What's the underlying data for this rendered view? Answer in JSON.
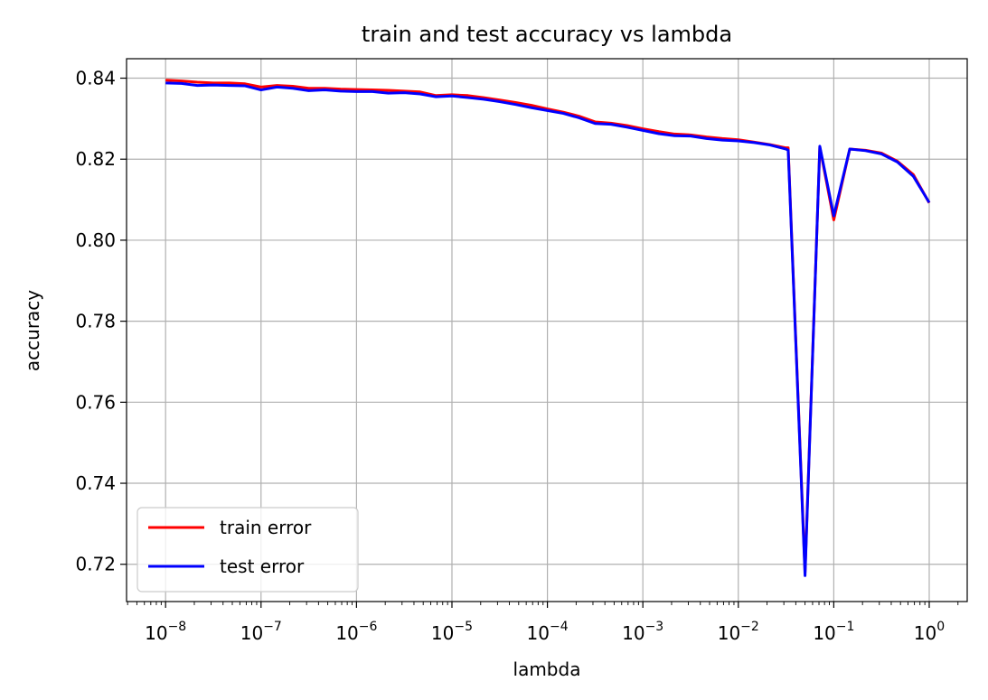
{
  "chart_data": {
    "type": "line",
    "title": "train and test accuracy vs lambda",
    "xlabel": "lambda",
    "ylabel": "accuracy",
    "xscale": "log",
    "xlim": [
      3.9e-09,
      2.5
    ],
    "ylim": [
      0.7108,
      0.8448
    ],
    "xticks": [
      {
        "value": 1e-08,
        "base": "10",
        "exp": "−8"
      },
      {
        "value": 1e-07,
        "base": "10",
        "exp": "−7"
      },
      {
        "value": 1e-06,
        "base": "10",
        "exp": "−6"
      },
      {
        "value": 1e-05,
        "base": "10",
        "exp": "−5"
      },
      {
        "value": 0.0001,
        "base": "10",
        "exp": "−4"
      },
      {
        "value": 0.001,
        "base": "10",
        "exp": "−3"
      },
      {
        "value": 0.01,
        "base": "10",
        "exp": "−2"
      },
      {
        "value": 0.1,
        "base": "10",
        "exp": "−1"
      },
      {
        "value": 1,
        "base": "10",
        "exp": "0"
      }
    ],
    "yticks": [
      {
        "value": 0.72,
        "label": "0.72"
      },
      {
        "value": 0.74,
        "label": "0.74"
      },
      {
        "value": 0.76,
        "label": "0.76"
      },
      {
        "value": 0.78,
        "label": "0.78"
      },
      {
        "value": 0.8,
        "label": "0.80"
      },
      {
        "value": 0.82,
        "label": "0.82"
      },
      {
        "value": 0.84,
        "label": "0.84"
      }
    ],
    "grid": true,
    "legend_position": "lower-left",
    "series": [
      {
        "name": "train error",
        "color": "#ff0000",
        "points": [
          [
            1e-08,
            0.8395
          ],
          [
            1.47e-08,
            0.8393
          ],
          [
            2.15e-08,
            0.839
          ],
          [
            3.16e-08,
            0.8388
          ],
          [
            4.64e-08,
            0.8388
          ],
          [
            6.81e-08,
            0.8386
          ],
          [
            1e-07,
            0.8378
          ],
          [
            1.47e-07,
            0.8382
          ],
          [
            2.15e-07,
            0.838
          ],
          [
            3.16e-07,
            0.8375
          ],
          [
            4.64e-07,
            0.8375
          ],
          [
            6.81e-07,
            0.8373
          ],
          [
            1e-06,
            0.8372
          ],
          [
            1.47e-06,
            0.8371
          ],
          [
            2.15e-06,
            0.837
          ],
          [
            3.16e-06,
            0.8368
          ],
          [
            4.64e-06,
            0.8366
          ],
          [
            6.81e-06,
            0.8357
          ],
          [
            1e-05,
            0.8359
          ],
          [
            1.47e-05,
            0.8357
          ],
          [
            2.15e-05,
            0.8352
          ],
          [
            3.16e-05,
            0.8346
          ],
          [
            4.64e-05,
            0.834
          ],
          [
            6.81e-05,
            0.8333
          ],
          [
            0.0001,
            0.8324
          ],
          [
            0.000147,
            0.8316
          ],
          [
            0.000215,
            0.8306
          ],
          [
            0.000316,
            0.8292
          ],
          [
            0.000464,
            0.8289
          ],
          [
            0.000681,
            0.8283
          ],
          [
            0.001,
            0.8275
          ],
          [
            0.00147,
            0.8268
          ],
          [
            0.00215,
            0.8262
          ],
          [
            0.00316,
            0.826
          ],
          [
            0.00464,
            0.8255
          ],
          [
            0.00681,
            0.8251
          ],
          [
            0.01,
            0.8248
          ],
          [
            0.0147,
            0.8242
          ],
          [
            0.0215,
            0.8236
          ],
          [
            0.0316,
            0.8228
          ],
          [
            0.0333,
            0.8228
          ],
          [
            0.05,
            0.718
          ],
          [
            0.0714,
            0.823
          ],
          [
            0.1,
            0.805
          ],
          [
            0.147,
            0.8225
          ],
          [
            0.215,
            0.8222
          ],
          [
            0.316,
            0.8215
          ],
          [
            0.464,
            0.8195
          ],
          [
            0.681,
            0.8162
          ],
          [
            1.0,
            0.8092
          ]
        ]
      },
      {
        "name": "test error",
        "color": "#0000ff",
        "points": [
          [
            1e-08,
            0.8388
          ],
          [
            1.47e-08,
            0.8387
          ],
          [
            2.15e-08,
            0.8382
          ],
          [
            3.16e-08,
            0.8383
          ],
          [
            4.64e-08,
            0.8382
          ],
          [
            6.81e-08,
            0.8381
          ],
          [
            1e-07,
            0.8371
          ],
          [
            1.47e-07,
            0.8378
          ],
          [
            2.15e-07,
            0.8375
          ],
          [
            3.16e-07,
            0.8369
          ],
          [
            4.64e-07,
            0.8371
          ],
          [
            6.81e-07,
            0.8368
          ],
          [
            1e-06,
            0.8367
          ],
          [
            1.47e-06,
            0.8367
          ],
          [
            2.15e-06,
            0.8363
          ],
          [
            3.16e-06,
            0.8364
          ],
          [
            4.64e-06,
            0.8361
          ],
          [
            6.81e-06,
            0.8354
          ],
          [
            1e-05,
            0.8356
          ],
          [
            1.47e-05,
            0.8352
          ],
          [
            2.15e-05,
            0.8348
          ],
          [
            3.16e-05,
            0.8342
          ],
          [
            4.64e-05,
            0.8335
          ],
          [
            6.81e-05,
            0.8327
          ],
          [
            0.0001,
            0.832
          ],
          [
            0.000147,
            0.8313
          ],
          [
            0.000215,
            0.8302
          ],
          [
            0.000316,
            0.8288
          ],
          [
            0.000464,
            0.8286
          ],
          [
            0.000681,
            0.8279
          ],
          [
            0.001,
            0.8271
          ],
          [
            0.00147,
            0.8263
          ],
          [
            0.00215,
            0.8258
          ],
          [
            0.00316,
            0.8257
          ],
          [
            0.00464,
            0.8251
          ],
          [
            0.00681,
            0.8247
          ],
          [
            0.01,
            0.8245
          ],
          [
            0.0147,
            0.8241
          ],
          [
            0.0215,
            0.8235
          ],
          [
            0.0316,
            0.8225
          ],
          [
            0.0333,
            0.8222
          ],
          [
            0.05,
            0.7172
          ],
          [
            0.0714,
            0.8232
          ],
          [
            0.1,
            0.806
          ],
          [
            0.147,
            0.8225
          ],
          [
            0.215,
            0.8221
          ],
          [
            0.316,
            0.8213
          ],
          [
            0.464,
            0.8193
          ],
          [
            0.681,
            0.8158
          ],
          [
            1.0,
            0.8093
          ]
        ]
      }
    ]
  }
}
